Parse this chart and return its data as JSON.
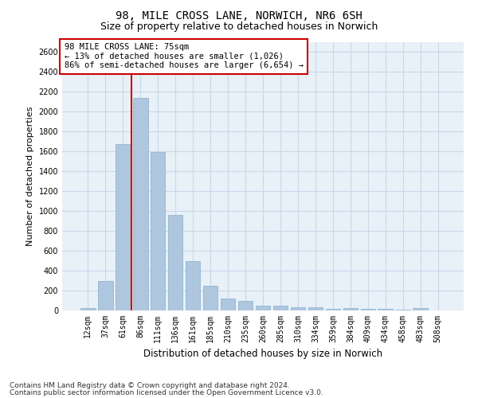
{
  "title_line1": "98, MILE CROSS LANE, NORWICH, NR6 6SH",
  "title_line2": "Size of property relative to detached houses in Norwich",
  "xlabel": "Distribution of detached houses by size in Norwich",
  "ylabel": "Number of detached properties",
  "categories": [
    "12sqm",
    "37sqm",
    "61sqm",
    "86sqm",
    "111sqm",
    "136sqm",
    "161sqm",
    "185sqm",
    "210sqm",
    "235sqm",
    "260sqm",
    "285sqm",
    "310sqm",
    "334sqm",
    "359sqm",
    "384sqm",
    "409sqm",
    "434sqm",
    "458sqm",
    "483sqm",
    "508sqm"
  ],
  "values": [
    25,
    300,
    1670,
    2140,
    1590,
    960,
    500,
    250,
    120,
    100,
    50,
    50,
    30,
    35,
    20,
    25,
    20,
    20,
    5,
    25,
    0
  ],
  "bar_color": "#aec6de",
  "bar_edge_color": "#8ab0cc",
  "vline_color": "#cc0000",
  "annotation_box_text": "98 MILE CROSS LANE: 75sqm\n← 13% of detached houses are smaller (1,026)\n86% of semi-detached houses are larger (6,654) →",
  "annotation_box_color": "#cc0000",
  "ylim": [
    0,
    2700
  ],
  "yticks": [
    0,
    200,
    400,
    600,
    800,
    1000,
    1200,
    1400,
    1600,
    1800,
    2000,
    2200,
    2400,
    2600
  ],
  "grid_color": "#c8d8e8",
  "background_color": "#e8f0f8",
  "footer_line1": "Contains HM Land Registry data © Crown copyright and database right 2024.",
  "footer_line2": "Contains public sector information licensed under the Open Government Licence v3.0.",
  "title_fontsize": 10,
  "subtitle_fontsize": 9,
  "xlabel_fontsize": 8.5,
  "ylabel_fontsize": 8,
  "annotation_fontsize": 7.5,
  "tick_fontsize": 7,
  "footer_fontsize": 6.5
}
